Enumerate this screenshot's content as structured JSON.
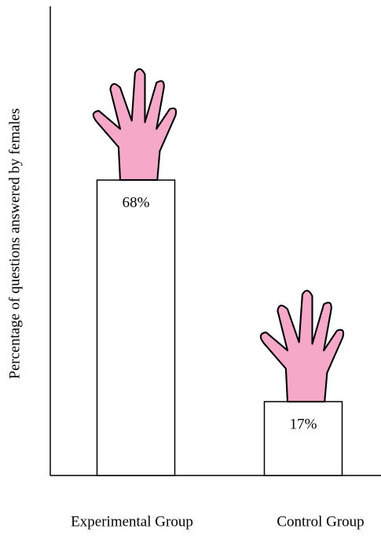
{
  "chart_data": {
    "type": "bar",
    "y_label": "Percentage of questions answered by females",
    "categories": [
      "Experimental Group",
      "Control Group"
    ],
    "values": [
      68,
      17
    ],
    "value_labels": [
      "68%",
      "17%"
    ],
    "color": "#ffffff",
    "ylim": [
      0,
      108
    ]
  }
}
